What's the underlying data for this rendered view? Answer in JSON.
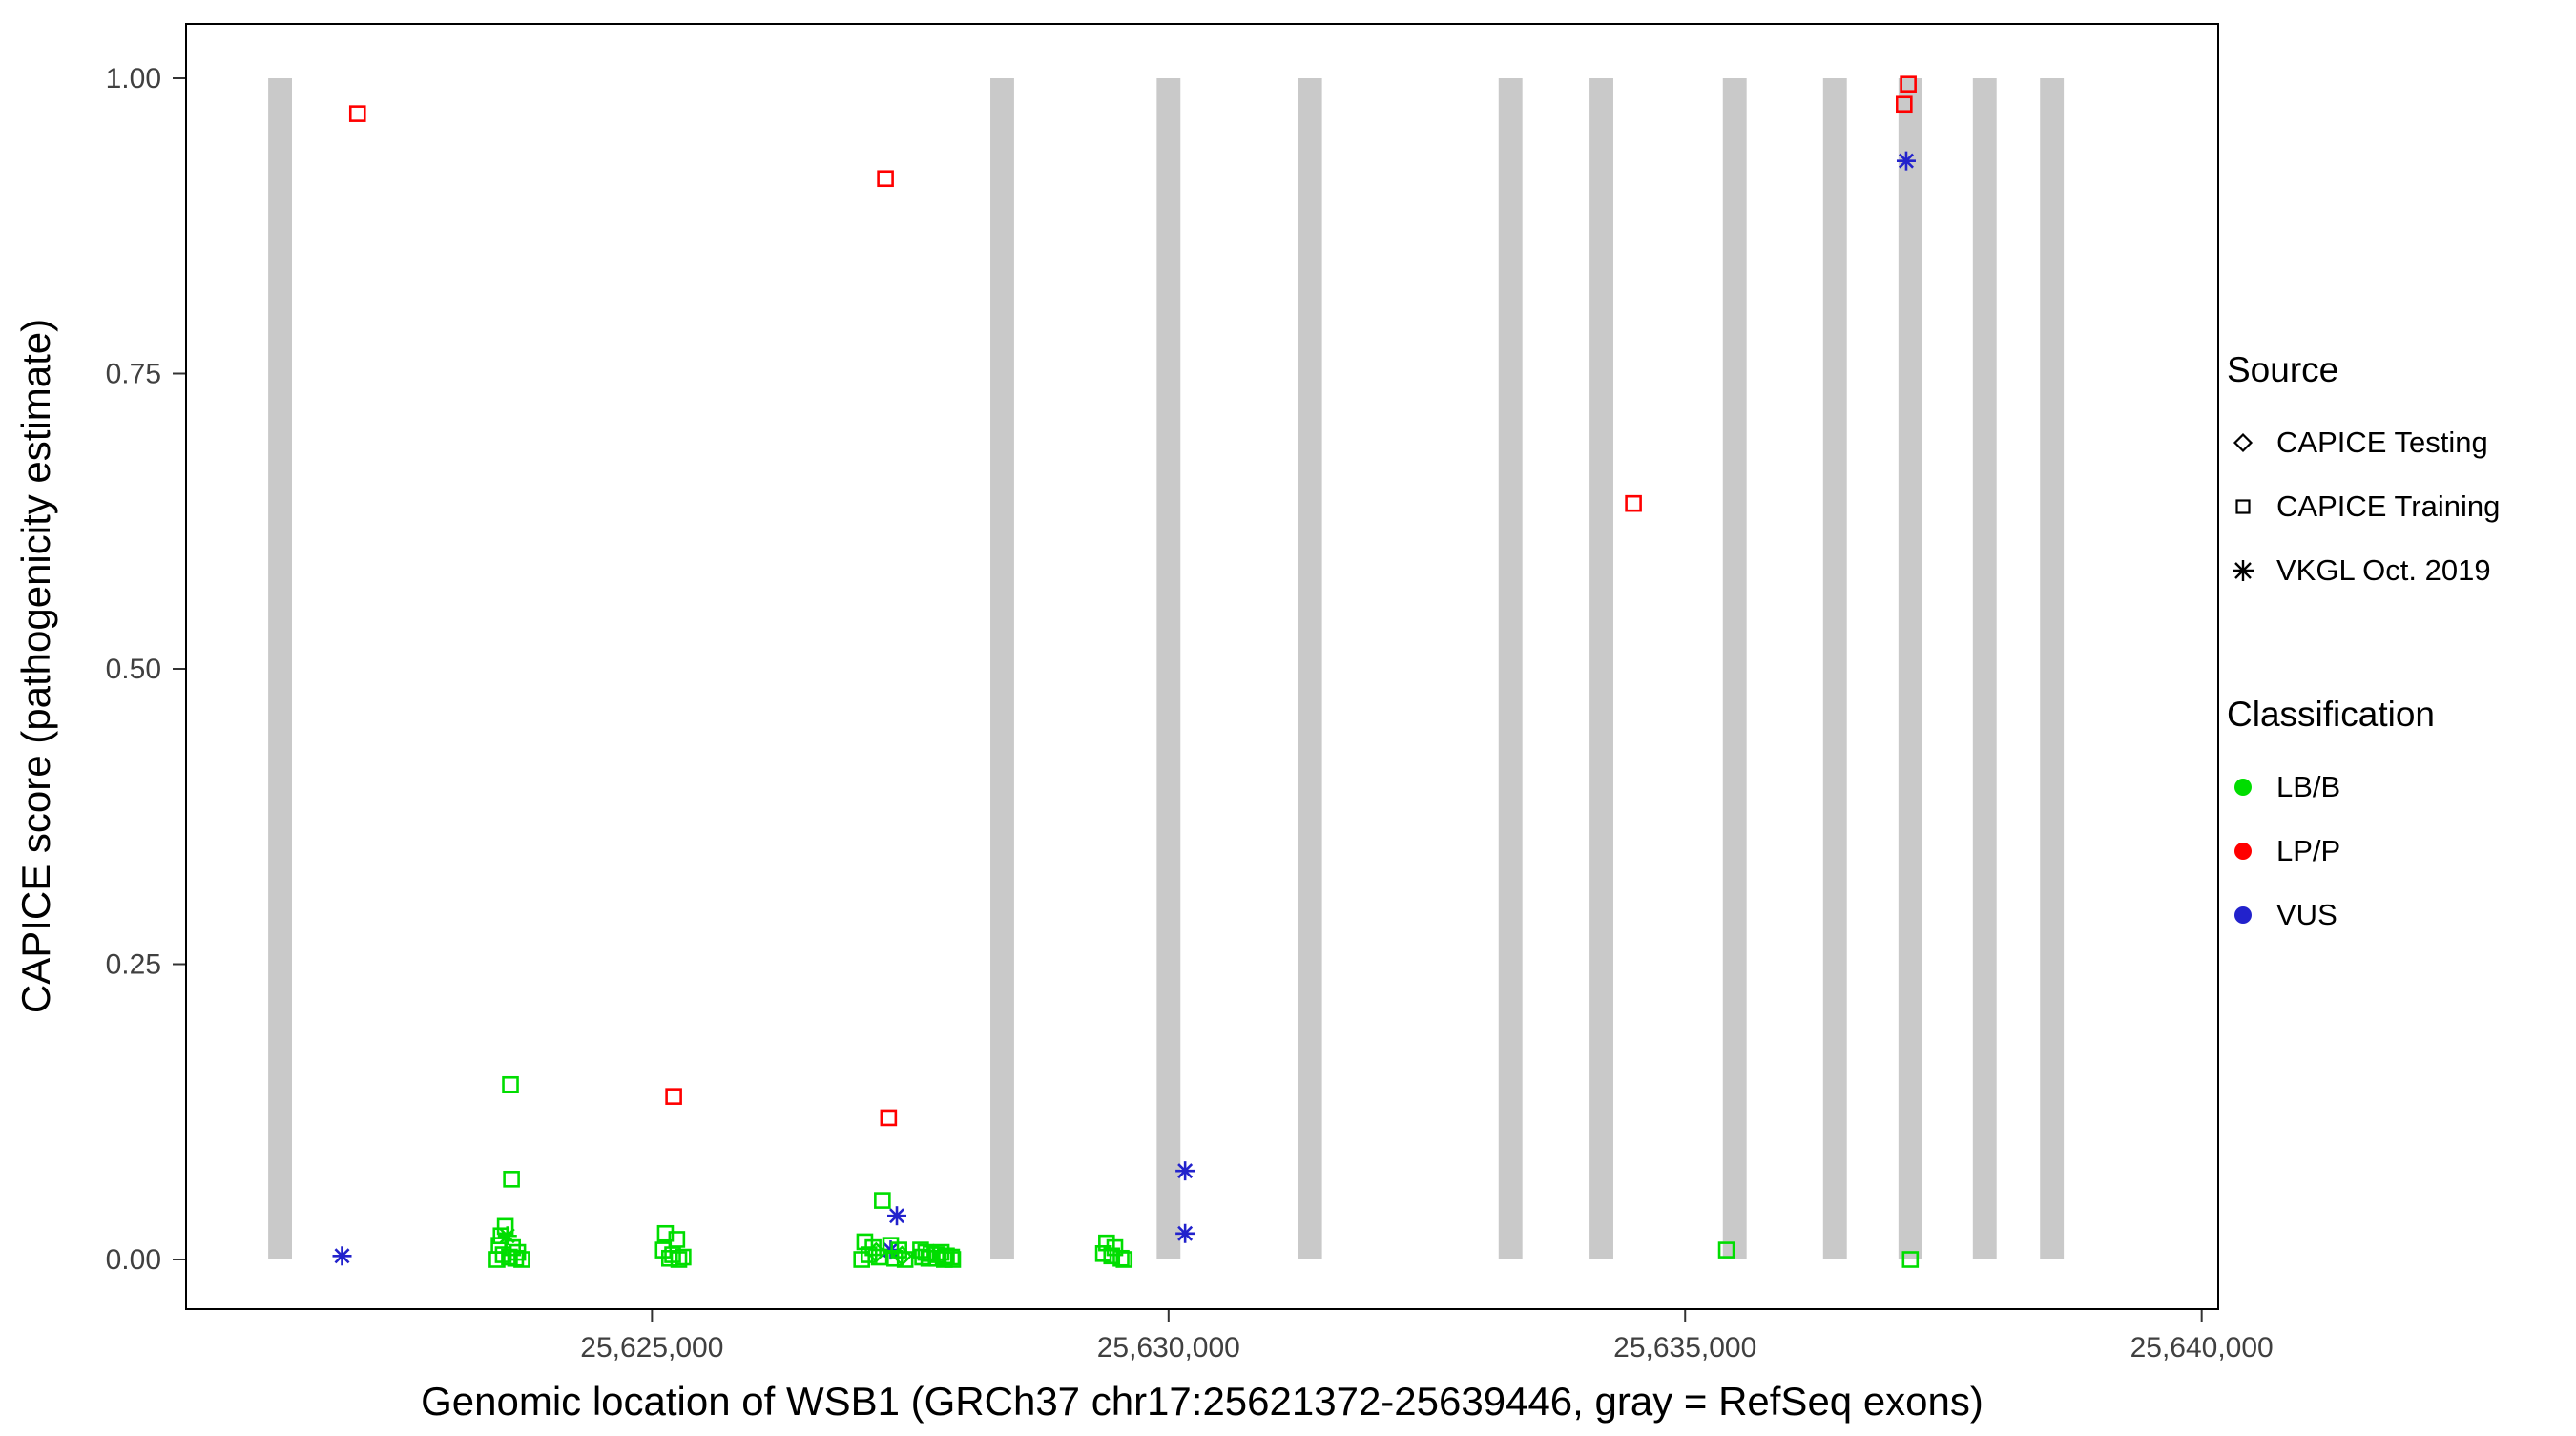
{
  "chart_data": {
    "type": "scatter",
    "title": "",
    "xlabel": "Genomic location of WSB1 (GRCh37 chr17:25621372-25639446, gray = RefSeq exons)",
    "ylabel": "CAPICE score (pathogenicity estimate)",
    "x_domain": [
      25620490,
      25640160
    ],
    "ylim": [
      0,
      1
    ],
    "grid": "off",
    "legend_position": "right",
    "x_ticks": [
      {
        "value": 25625000,
        "label": "25,625,000"
      },
      {
        "value": 25630000,
        "label": "25,630,000"
      },
      {
        "value": 25635000,
        "label": "25,635,000"
      },
      {
        "value": 25640000,
        "label": "25,640,000"
      }
    ],
    "y_ticks": [
      {
        "value": 0.0,
        "label": "0.00"
      },
      {
        "value": 0.25,
        "label": "0.25"
      },
      {
        "value": 0.5,
        "label": "0.50"
      },
      {
        "value": 0.75,
        "label": "0.75"
      },
      {
        "value": 1.0,
        "label": "1.00"
      }
    ],
    "exon_color": "#c9c9c9",
    "exon_width_bp": 230,
    "exons": [
      25621400,
      25628390,
      25630000,
      25631370,
      25633310,
      25634190,
      25635480,
      25636450,
      25637180,
      25637900,
      25638550
    ],
    "colors": {
      "LB/B": "#00dd00",
      "LP/P": "#ff0000",
      "VUS": "#2222cc"
    },
    "markers": {
      "CAPICE Testing": "diamond",
      "CAPICE Training": "square",
      "VKGL Oct. 2019": "asterisk"
    },
    "legend": {
      "source_title": "Source",
      "source_items": [
        {
          "label": "CAPICE Testing",
          "marker": "diamond"
        },
        {
          "label": "CAPICE Training",
          "marker": "square"
        },
        {
          "label": "VKGL Oct. 2019",
          "marker": "asterisk"
        }
      ],
      "class_title": "Classification",
      "class_items": [
        {
          "label": "LB/B",
          "color": "#00dd00"
        },
        {
          "label": "LP/P",
          "color": "#ff0000"
        },
        {
          "label": "VUS",
          "color": "#2222cc"
        }
      ]
    },
    "points": [
      {
        "x": 25622150,
        "y": 0.97,
        "source": "CAPICE Training",
        "cls": "LP/P"
      },
      {
        "x": 25627260,
        "y": 0.915,
        "source": "CAPICE Training",
        "cls": "LP/P"
      },
      {
        "x": 25634500,
        "y": 0.64,
        "source": "CAPICE Training",
        "cls": "LP/P"
      },
      {
        "x": 25637160,
        "y": 0.995,
        "source": "CAPICE Training",
        "cls": "LP/P"
      },
      {
        "x": 25637120,
        "y": 0.978,
        "source": "CAPICE Training",
        "cls": "LP/P"
      },
      {
        "x": 25625210,
        "y": 0.138,
        "source": "CAPICE Training",
        "cls": "LP/P"
      },
      {
        "x": 25627290,
        "y": 0.12,
        "source": "CAPICE Training",
        "cls": "LP/P"
      },
      {
        "x": 25637140,
        "y": 0.93,
        "source": "VKGL Oct. 2019",
        "cls": "VUS"
      },
      {
        "x": 25622000,
        "y": 0.003,
        "source": "VKGL Oct. 2019",
        "cls": "VUS"
      },
      {
        "x": 25630160,
        "y": 0.075,
        "source": "VKGL Oct. 2019",
        "cls": "VUS"
      },
      {
        "x": 25630160,
        "y": 0.022,
        "source": "VKGL Oct. 2019",
        "cls": "VUS"
      },
      {
        "x": 25627370,
        "y": 0.037,
        "source": "VKGL Oct. 2019",
        "cls": "VUS"
      },
      {
        "x": 25627310,
        "y": 0.008,
        "source": "VKGL Oct. 2019",
        "cls": "VUS"
      },
      {
        "x": 25623600,
        "y": 0.02,
        "source": "VKGL Oct. 2019",
        "cls": "LB/B"
      },
      {
        "x": 25623630,
        "y": 0.148,
        "source": "CAPICE Training",
        "cls": "LB/B"
      },
      {
        "x": 25623640,
        "y": 0.068,
        "source": "CAPICE Training",
        "cls": "LB/B"
      },
      {
        "x": 25623580,
        "y": 0.028,
        "source": "CAPICE Training",
        "cls": "LB/B"
      },
      {
        "x": 25623540,
        "y": 0.02,
        "source": "CAPICE Training",
        "cls": "LB/B"
      },
      {
        "x": 25623520,
        "y": 0.012,
        "source": "CAPICE Training",
        "cls": "LB/B"
      },
      {
        "x": 25623650,
        "y": 0.01,
        "source": "CAPICE Training",
        "cls": "LB/B"
      },
      {
        "x": 25623700,
        "y": 0.006,
        "source": "CAPICE Training",
        "cls": "LB/B"
      },
      {
        "x": 25623560,
        "y": 0.004,
        "source": "CAPICE Training",
        "cls": "LB/B"
      },
      {
        "x": 25623620,
        "y": 0.002,
        "source": "CAPICE Training",
        "cls": "LB/B"
      },
      {
        "x": 25623680,
        "y": 0.001,
        "source": "CAPICE Training",
        "cls": "LB/B"
      },
      {
        "x": 25623740,
        "y": 0.0,
        "source": "CAPICE Training",
        "cls": "LB/B"
      },
      {
        "x": 25623500,
        "y": 0.0,
        "source": "CAPICE Training",
        "cls": "LB/B"
      },
      {
        "x": 25625130,
        "y": 0.022,
        "source": "CAPICE Training",
        "cls": "LB/B"
      },
      {
        "x": 25625240,
        "y": 0.017,
        "source": "CAPICE Training",
        "cls": "LB/B"
      },
      {
        "x": 25625110,
        "y": 0.008,
        "source": "CAPICE Training",
        "cls": "LB/B"
      },
      {
        "x": 25625200,
        "y": 0.004,
        "source": "CAPICE Training",
        "cls": "LB/B"
      },
      {
        "x": 25625300,
        "y": 0.002,
        "source": "CAPICE Training",
        "cls": "LB/B"
      },
      {
        "x": 25625170,
        "y": 0.001,
        "source": "CAPICE Training",
        "cls": "LB/B"
      },
      {
        "x": 25625260,
        "y": 0.0,
        "source": "CAPICE Training",
        "cls": "LB/B"
      },
      {
        "x": 25627230,
        "y": 0.05,
        "source": "CAPICE Training",
        "cls": "LB/B"
      },
      {
        "x": 25627060,
        "y": 0.015,
        "source": "CAPICE Training",
        "cls": "LB/B"
      },
      {
        "x": 25627140,
        "y": 0.01,
        "source": "CAPICE Training",
        "cls": "LB/B"
      },
      {
        "x": 25627310,
        "y": 0.012,
        "source": "CAPICE Training",
        "cls": "LB/B"
      },
      {
        "x": 25627390,
        "y": 0.008,
        "source": "CAPICE Training",
        "cls": "LB/B"
      },
      {
        "x": 25627100,
        "y": 0.004,
        "source": "CAPICE Training",
        "cls": "LB/B"
      },
      {
        "x": 25627200,
        "y": 0.002,
        "source": "CAPICE Training",
        "cls": "LB/B"
      },
      {
        "x": 25627350,
        "y": 0.001,
        "source": "CAPICE Training",
        "cls": "LB/B"
      },
      {
        "x": 25627450,
        "y": 0.0,
        "source": "CAPICE Training",
        "cls": "LB/B"
      },
      {
        "x": 25627030,
        "y": 0.0,
        "source": "CAPICE Training",
        "cls": "LB/B"
      },
      {
        "x": 25627170,
        "y": 0.006,
        "source": "CAPICE Testing",
        "cls": "LB/B"
      },
      {
        "x": 25627420,
        "y": 0.003,
        "source": "CAPICE Testing",
        "cls": "LB/B"
      },
      {
        "x": 25627600,
        "y": 0.008,
        "source": "CAPICE Training",
        "cls": "LB/B"
      },
      {
        "x": 25627650,
        "y": 0.006,
        "source": "CAPICE Training",
        "cls": "LB/B"
      },
      {
        "x": 25627700,
        "y": 0.005,
        "source": "CAPICE Training",
        "cls": "LB/B"
      },
      {
        "x": 25627750,
        "y": 0.004,
        "source": "CAPICE Training",
        "cls": "LB/B"
      },
      {
        "x": 25627800,
        "y": 0.006,
        "source": "CAPICE Training",
        "cls": "LB/B"
      },
      {
        "x": 25627850,
        "y": 0.003,
        "source": "CAPICE Training",
        "cls": "LB/B"
      },
      {
        "x": 25627900,
        "y": 0.002,
        "source": "CAPICE Training",
        "cls": "LB/B"
      },
      {
        "x": 25627620,
        "y": 0.002,
        "source": "CAPICE Training",
        "cls": "LB/B"
      },
      {
        "x": 25627680,
        "y": 0.001,
        "source": "CAPICE Training",
        "cls": "LB/B"
      },
      {
        "x": 25627760,
        "y": 0.001,
        "source": "CAPICE Training",
        "cls": "LB/B"
      },
      {
        "x": 25627830,
        "y": 0.0,
        "source": "CAPICE Training",
        "cls": "LB/B"
      },
      {
        "x": 25627910,
        "y": 0.0,
        "source": "CAPICE Training",
        "cls": "LB/B"
      },
      {
        "x": 25629400,
        "y": 0.014,
        "source": "CAPICE Training",
        "cls": "LB/B"
      },
      {
        "x": 25629480,
        "y": 0.01,
        "source": "CAPICE Training",
        "cls": "LB/B"
      },
      {
        "x": 25629370,
        "y": 0.005,
        "source": "CAPICE Training",
        "cls": "LB/B"
      },
      {
        "x": 25629450,
        "y": 0.003,
        "source": "CAPICE Training",
        "cls": "LB/B"
      },
      {
        "x": 25629540,
        "y": 0.001,
        "source": "CAPICE Training",
        "cls": "LB/B"
      },
      {
        "x": 25629570,
        "y": 0.0,
        "source": "CAPICE Training",
        "cls": "LB/B"
      },
      {
        "x": 25635400,
        "y": 0.008,
        "source": "CAPICE Training",
        "cls": "LB/B"
      },
      {
        "x": 25637180,
        "y": 0.0,
        "source": "CAPICE Training",
        "cls": "LB/B"
      }
    ]
  }
}
